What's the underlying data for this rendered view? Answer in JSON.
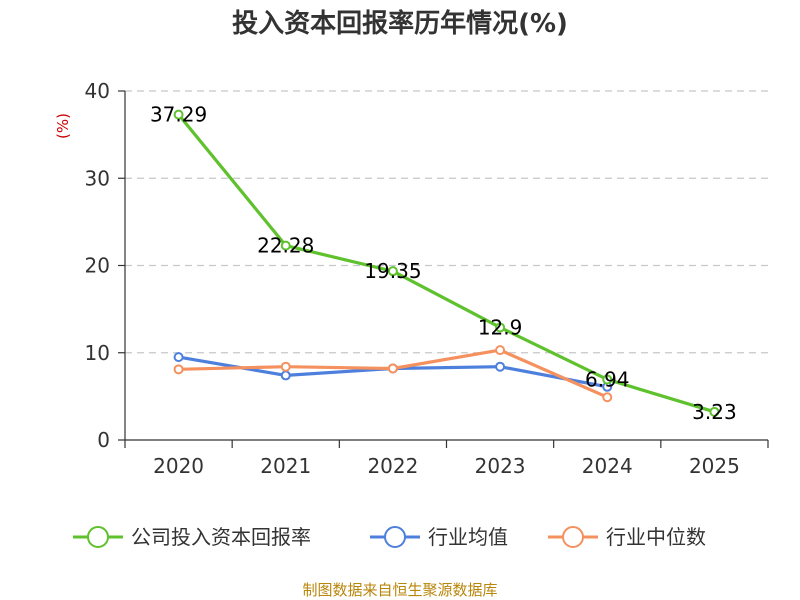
{
  "chart_data": {
    "type": "line",
    "title": "投入资本回报率历年情况(%)",
    "unit_label": "(%)",
    "categories": [
      "2020",
      "2021",
      "2022",
      "2023",
      "2024",
      "2025"
    ],
    "ylim": [
      0,
      40
    ],
    "yticks": [
      "0",
      "10",
      "20",
      "30",
      "40"
    ],
    "grid": true,
    "legend_position": "bottom",
    "series": [
      {
        "name": "公司投入资本回报率",
        "color": "#5ec12d",
        "values": [
          37.29,
          22.28,
          19.35,
          12.9,
          6.94,
          3.23
        ],
        "labels": [
          "37.29",
          "22.28",
          "19.35",
          "12.9",
          "6.94",
          "3.23"
        ]
      },
      {
        "name": "行业均值",
        "color": "#4d7fdc",
        "values": [
          9.5,
          7.4,
          8.2,
          8.4,
          6.1,
          null
        ]
      },
      {
        "name": "行业中位数",
        "color": "#f5915f",
        "values": [
          8.1,
          8.4,
          8.2,
          10.3,
          4.9,
          null
        ]
      }
    ],
    "source": "制图数据来自恒生聚源数据库"
  }
}
